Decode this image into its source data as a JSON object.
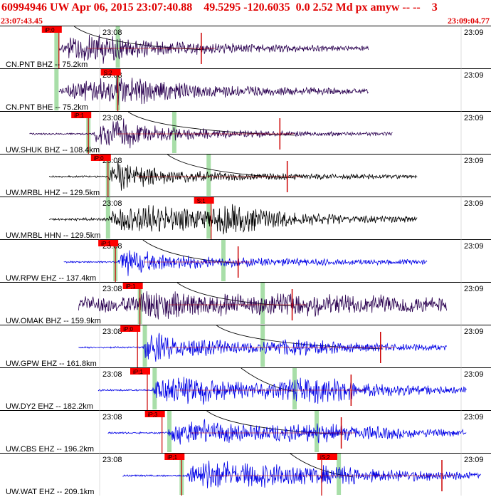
{
  "header": {
    "title": "60994946 UW Apr 06, 2015 23:07:40.88    49.5295 -120.6035  0.0 2.52 Md px amyw -- --    3",
    "start_time": "23:07:43.45",
    "end_time": "23:09:04.77"
  },
  "colors": {
    "title": "#e00000",
    "pick_box": "#ff0000",
    "green_marker": "#a8dea8",
    "purple_trace": "#2a0050",
    "black_trace": "#000000",
    "blue_trace": "#0000e6",
    "red_trace": "#cc0000",
    "curve": "#000000"
  },
  "chart_data": {
    "type": "line",
    "x_axis": {
      "label_left": "23:08",
      "label_right": "23:09",
      "start": "23:07:43.45",
      "end": "23:09:04.77"
    },
    "traces": [
      {
        "label": "CN.PNT BHZ -- 75.2km",
        "pick": "iP;0",
        "color": "purple",
        "envelope": [
          [
            0.12,
            0.0
          ],
          [
            0.135,
            0.6
          ],
          [
            0.2,
            0.9
          ],
          [
            0.25,
            0.55
          ],
          [
            0.32,
            0.35
          ],
          [
            0.5,
            0.2
          ],
          [
            0.75,
            0.08
          ]
        ],
        "noise": 0.06,
        "span": [
          0.12,
          0.75
        ],
        "pick_at": 0.12,
        "red_at": 0.41,
        "green": [
          0.115,
          0.24
        ],
        "curve": [
          0.18,
          0.42
        ]
      },
      {
        "label": "CN.PNT BHE -- 75.2km",
        "pick": "S;2",
        "color": "purple",
        "envelope": [
          [
            0.12,
            0.0
          ],
          [
            0.15,
            0.45
          ],
          [
            0.25,
            0.9
          ],
          [
            0.3,
            0.6
          ],
          [
            0.4,
            0.35
          ],
          [
            0.55,
            0.2
          ],
          [
            0.75,
            0.1
          ]
        ],
        "noise": 0.06,
        "span": [
          0.12,
          0.75
        ],
        "pick_at": 0.24,
        "red_at": null,
        "green": [
          0.115,
          0.24
        ],
        "curve": null
      },
      {
        "label": "UW.SHUK BHZ -- 108.4km",
        "pick": "iP;1",
        "color": "purple",
        "envelope": [
          [
            0.06,
            0.0
          ],
          [
            0.19,
            0.0
          ],
          [
            0.2,
            0.7
          ],
          [
            0.26,
            0.8
          ],
          [
            0.33,
            0.35
          ],
          [
            0.45,
            0.2
          ],
          [
            0.6,
            0.1
          ],
          [
            0.8,
            0.05
          ]
        ],
        "noise": 0.05,
        "span": [
          0.06,
          0.8
        ],
        "pick_at": 0.18,
        "red_at": 0.57,
        "green": [
          0.18,
          0.355
        ],
        "curve": [
          0.29,
          0.6
        ]
      },
      {
        "label": "UW.MRBL HHZ -- 129.5km",
        "pick": "iP;0",
        "color": "black",
        "envelope": [
          [
            0.1,
            0.0
          ],
          [
            0.22,
            0.0
          ],
          [
            0.23,
            0.9
          ],
          [
            0.28,
            0.6
          ],
          [
            0.35,
            0.35
          ],
          [
            0.45,
            0.2
          ],
          [
            0.6,
            0.12
          ],
          [
            0.85,
            0.06
          ]
        ],
        "noise": 0.05,
        "span": [
          0.1,
          0.85
        ],
        "pick_at": 0.22,
        "red_at": 0.585,
        "green": [
          0.22,
          0.425
        ],
        "curve": [
          0.37,
          0.6
        ]
      },
      {
        "label": "UW.MRBL HHN -- 129.5km",
        "pick": "S;1",
        "color": "black",
        "envelope": [
          [
            0.1,
            0.0
          ],
          [
            0.22,
            0.05
          ],
          [
            0.23,
            0.5
          ],
          [
            0.3,
            0.85
          ],
          [
            0.4,
            0.5
          ],
          [
            0.48,
            0.9
          ],
          [
            0.55,
            0.45
          ],
          [
            0.7,
            0.2
          ],
          [
            0.85,
            0.12
          ]
        ],
        "noise": 0.05,
        "span": [
          0.1,
          0.85
        ],
        "pick_at": 0.43,
        "red_at": null,
        "green": [
          0.22,
          0.425
        ],
        "curve": null
      },
      {
        "label": "UW.RPW EHZ -- 137.4km",
        "pick": "iP;1",
        "color": "blue",
        "envelope": [
          [
            0.13,
            0.0
          ],
          [
            0.24,
            0.0
          ],
          [
            0.25,
            0.9
          ],
          [
            0.32,
            0.45
          ],
          [
            0.45,
            0.25
          ],
          [
            0.6,
            0.15
          ],
          [
            0.87,
            0.08
          ]
        ],
        "noise": 0.05,
        "span": [
          0.13,
          0.87
        ],
        "pick_at": 0.235,
        "red_at": 0.485,
        "green": [
          0.235,
          0.455
        ],
        "curve": [
          0.32,
          0.49
        ]
      },
      {
        "label": "UW.OMAK BHZ -- 159.9km",
        "pick": "iP;1",
        "color": "purple",
        "envelope": [
          [
            0.16,
            0.2
          ],
          [
            0.28,
            0.25
          ],
          [
            0.3,
            0.7
          ],
          [
            0.37,
            0.45
          ],
          [
            0.5,
            0.3
          ],
          [
            0.6,
            0.4
          ],
          [
            0.7,
            0.3
          ],
          [
            0.91,
            0.25
          ]
        ],
        "noise": 0.25,
        "span": [
          0.16,
          0.91
        ],
        "pick_at": 0.285,
        "red_at": 0.595,
        "green": [
          0.285,
          0.535
        ],
        "curve": [
          0.39,
          0.6
        ]
      },
      {
        "label": "UW.GPW EHZ -- 161.8km",
        "pick": "iP;0",
        "color": "blue",
        "envelope": [
          [
            0.16,
            0.0
          ],
          [
            0.29,
            0.0
          ],
          [
            0.3,
            0.95
          ],
          [
            0.37,
            0.5
          ],
          [
            0.5,
            0.3
          ],
          [
            0.6,
            0.45
          ],
          [
            0.7,
            0.25
          ],
          [
            0.91,
            0.1
          ]
        ],
        "noise": 0.05,
        "span": [
          0.16,
          0.91
        ],
        "pick_at": 0.28,
        "red_at": 0.775,
        "green": [
          0.295,
          0.535
        ],
        "curve": [
          0.47,
          0.78
        ]
      },
      {
        "label": "UW.DY2 EHZ -- 182.2km",
        "pick": "iP;1",
        "color": "blue",
        "envelope": [
          [
            0.2,
            0.0
          ],
          [
            0.31,
            0.0
          ],
          [
            0.32,
            0.6
          ],
          [
            0.4,
            0.8
          ],
          [
            0.5,
            0.4
          ],
          [
            0.6,
            0.6
          ],
          [
            0.65,
            0.7
          ],
          [
            0.75,
            0.35
          ],
          [
            0.95,
            0.12
          ]
        ],
        "noise": 0.05,
        "span": [
          0.2,
          0.95
        ],
        "pick_at": 0.3,
        "red_at": 0.715,
        "green": [
          0.315,
          0.6
        ],
        "curve": [
          0.52,
          0.6
        ]
      },
      {
        "label": "UW.CBS EHZ -- 196.2km",
        "pick": "iP;3",
        "color": "blue",
        "envelope": [
          [
            0.22,
            0.0
          ],
          [
            0.34,
            0.0
          ],
          [
            0.35,
            0.5
          ],
          [
            0.4,
            0.8
          ],
          [
            0.5,
            0.4
          ],
          [
            0.64,
            0.55
          ],
          [
            0.7,
            0.4
          ],
          [
            0.95,
            0.12
          ]
        ],
        "noise": 0.05,
        "span": [
          0.22,
          0.95
        ],
        "pick_at": 0.33,
        "red_at": 0.695,
        "green": [
          0.345,
          0.645
        ],
        "curve": [
          0.45,
          0.7
        ]
      },
      {
        "label": "UW.WAT EHZ -- 209.1km",
        "pick": "iP;1",
        "color": "blue",
        "envelope": [
          [
            0.25,
            0.0
          ],
          [
            0.38,
            0.0
          ],
          [
            0.39,
            0.6
          ],
          [
            0.42,
            0.9
          ],
          [
            0.55,
            0.6
          ],
          [
            0.7,
            0.5
          ],
          [
            0.8,
            0.3
          ],
          [
            0.98,
            0.15
          ]
        ],
        "noise": 0.05,
        "span": [
          0.25,
          0.98
        ],
        "pick_at": 0.37,
        "red_at": 0.9,
        "green": [
          0.37,
          0.69
        ],
        "curve": [
          0.62,
          0.72
        ],
        "second_pick": "iS;2",
        "second_pick_at": 0.655
      }
    ]
  }
}
